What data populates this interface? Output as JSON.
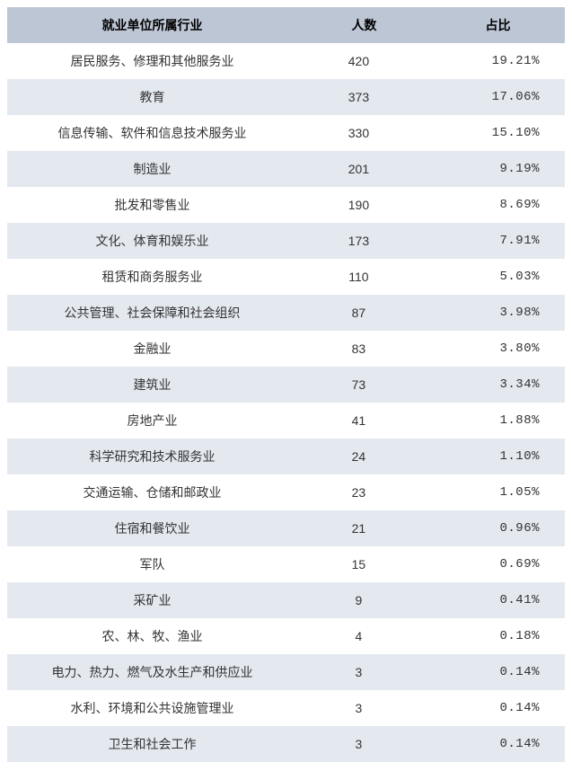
{
  "table": {
    "type": "table",
    "background_color": "#ffffff",
    "header_bg_color": "#bdc6d5",
    "stripe_bg_color": "#e4e8ef",
    "row_bg_color": "#ffffff",
    "text_color": "#333333",
    "header_text_color": "#000000",
    "font_size": 14,
    "header_font_weight": "bold",
    "columns": [
      {
        "key": "industry",
        "label": "就业单位所属行业",
        "width": "52%",
        "align": "center"
      },
      {
        "key": "count",
        "label": "人数",
        "width": "24%",
        "align": "center"
      },
      {
        "key": "percent",
        "label": "占比",
        "width": "24%",
        "align": "right"
      }
    ],
    "rows": [
      {
        "industry": "居民服务、修理和其他服务业",
        "count": "420",
        "percent": "19.21%"
      },
      {
        "industry": "教育",
        "count": "373",
        "percent": "17.06%"
      },
      {
        "industry": "信息传输、软件和信息技术服务业",
        "count": "330",
        "percent": "15.10%"
      },
      {
        "industry": "制造业",
        "count": "201",
        "percent": "9.19%"
      },
      {
        "industry": "批发和零售业",
        "count": "190",
        "percent": "8.69%"
      },
      {
        "industry": "文化、体育和娱乐业",
        "count": "173",
        "percent": "7.91%"
      },
      {
        "industry": "租赁和商务服务业",
        "count": "110",
        "percent": "5.03%"
      },
      {
        "industry": "公共管理、社会保障和社会组织",
        "count": "87",
        "percent": "3.98%"
      },
      {
        "industry": "金融业",
        "count": "83",
        "percent": "3.80%"
      },
      {
        "industry": "建筑业",
        "count": "73",
        "percent": "3.34%"
      },
      {
        "industry": "房地产业",
        "count": "41",
        "percent": "1.88%"
      },
      {
        "industry": "科学研究和技术服务业",
        "count": "24",
        "percent": "1.10%"
      },
      {
        "industry": "交通运输、仓储和邮政业",
        "count": "23",
        "percent": "1.05%"
      },
      {
        "industry": "住宿和餐饮业",
        "count": "21",
        "percent": "0.96%"
      },
      {
        "industry": "军队",
        "count": "15",
        "percent": "0.69%"
      },
      {
        "industry": "采矿业",
        "count": "9",
        "percent": "0.41%"
      },
      {
        "industry": "农、林、牧、渔业",
        "count": "4",
        "percent": "0.18%"
      },
      {
        "industry": "电力、热力、燃气及水生产和供应业",
        "count": "3",
        "percent": "0.14%"
      },
      {
        "industry": "水利、环境和公共设施管理业",
        "count": "3",
        "percent": "0.14%"
      },
      {
        "industry": "卫生和社会工作",
        "count": "3",
        "percent": "0.14%"
      }
    ]
  }
}
